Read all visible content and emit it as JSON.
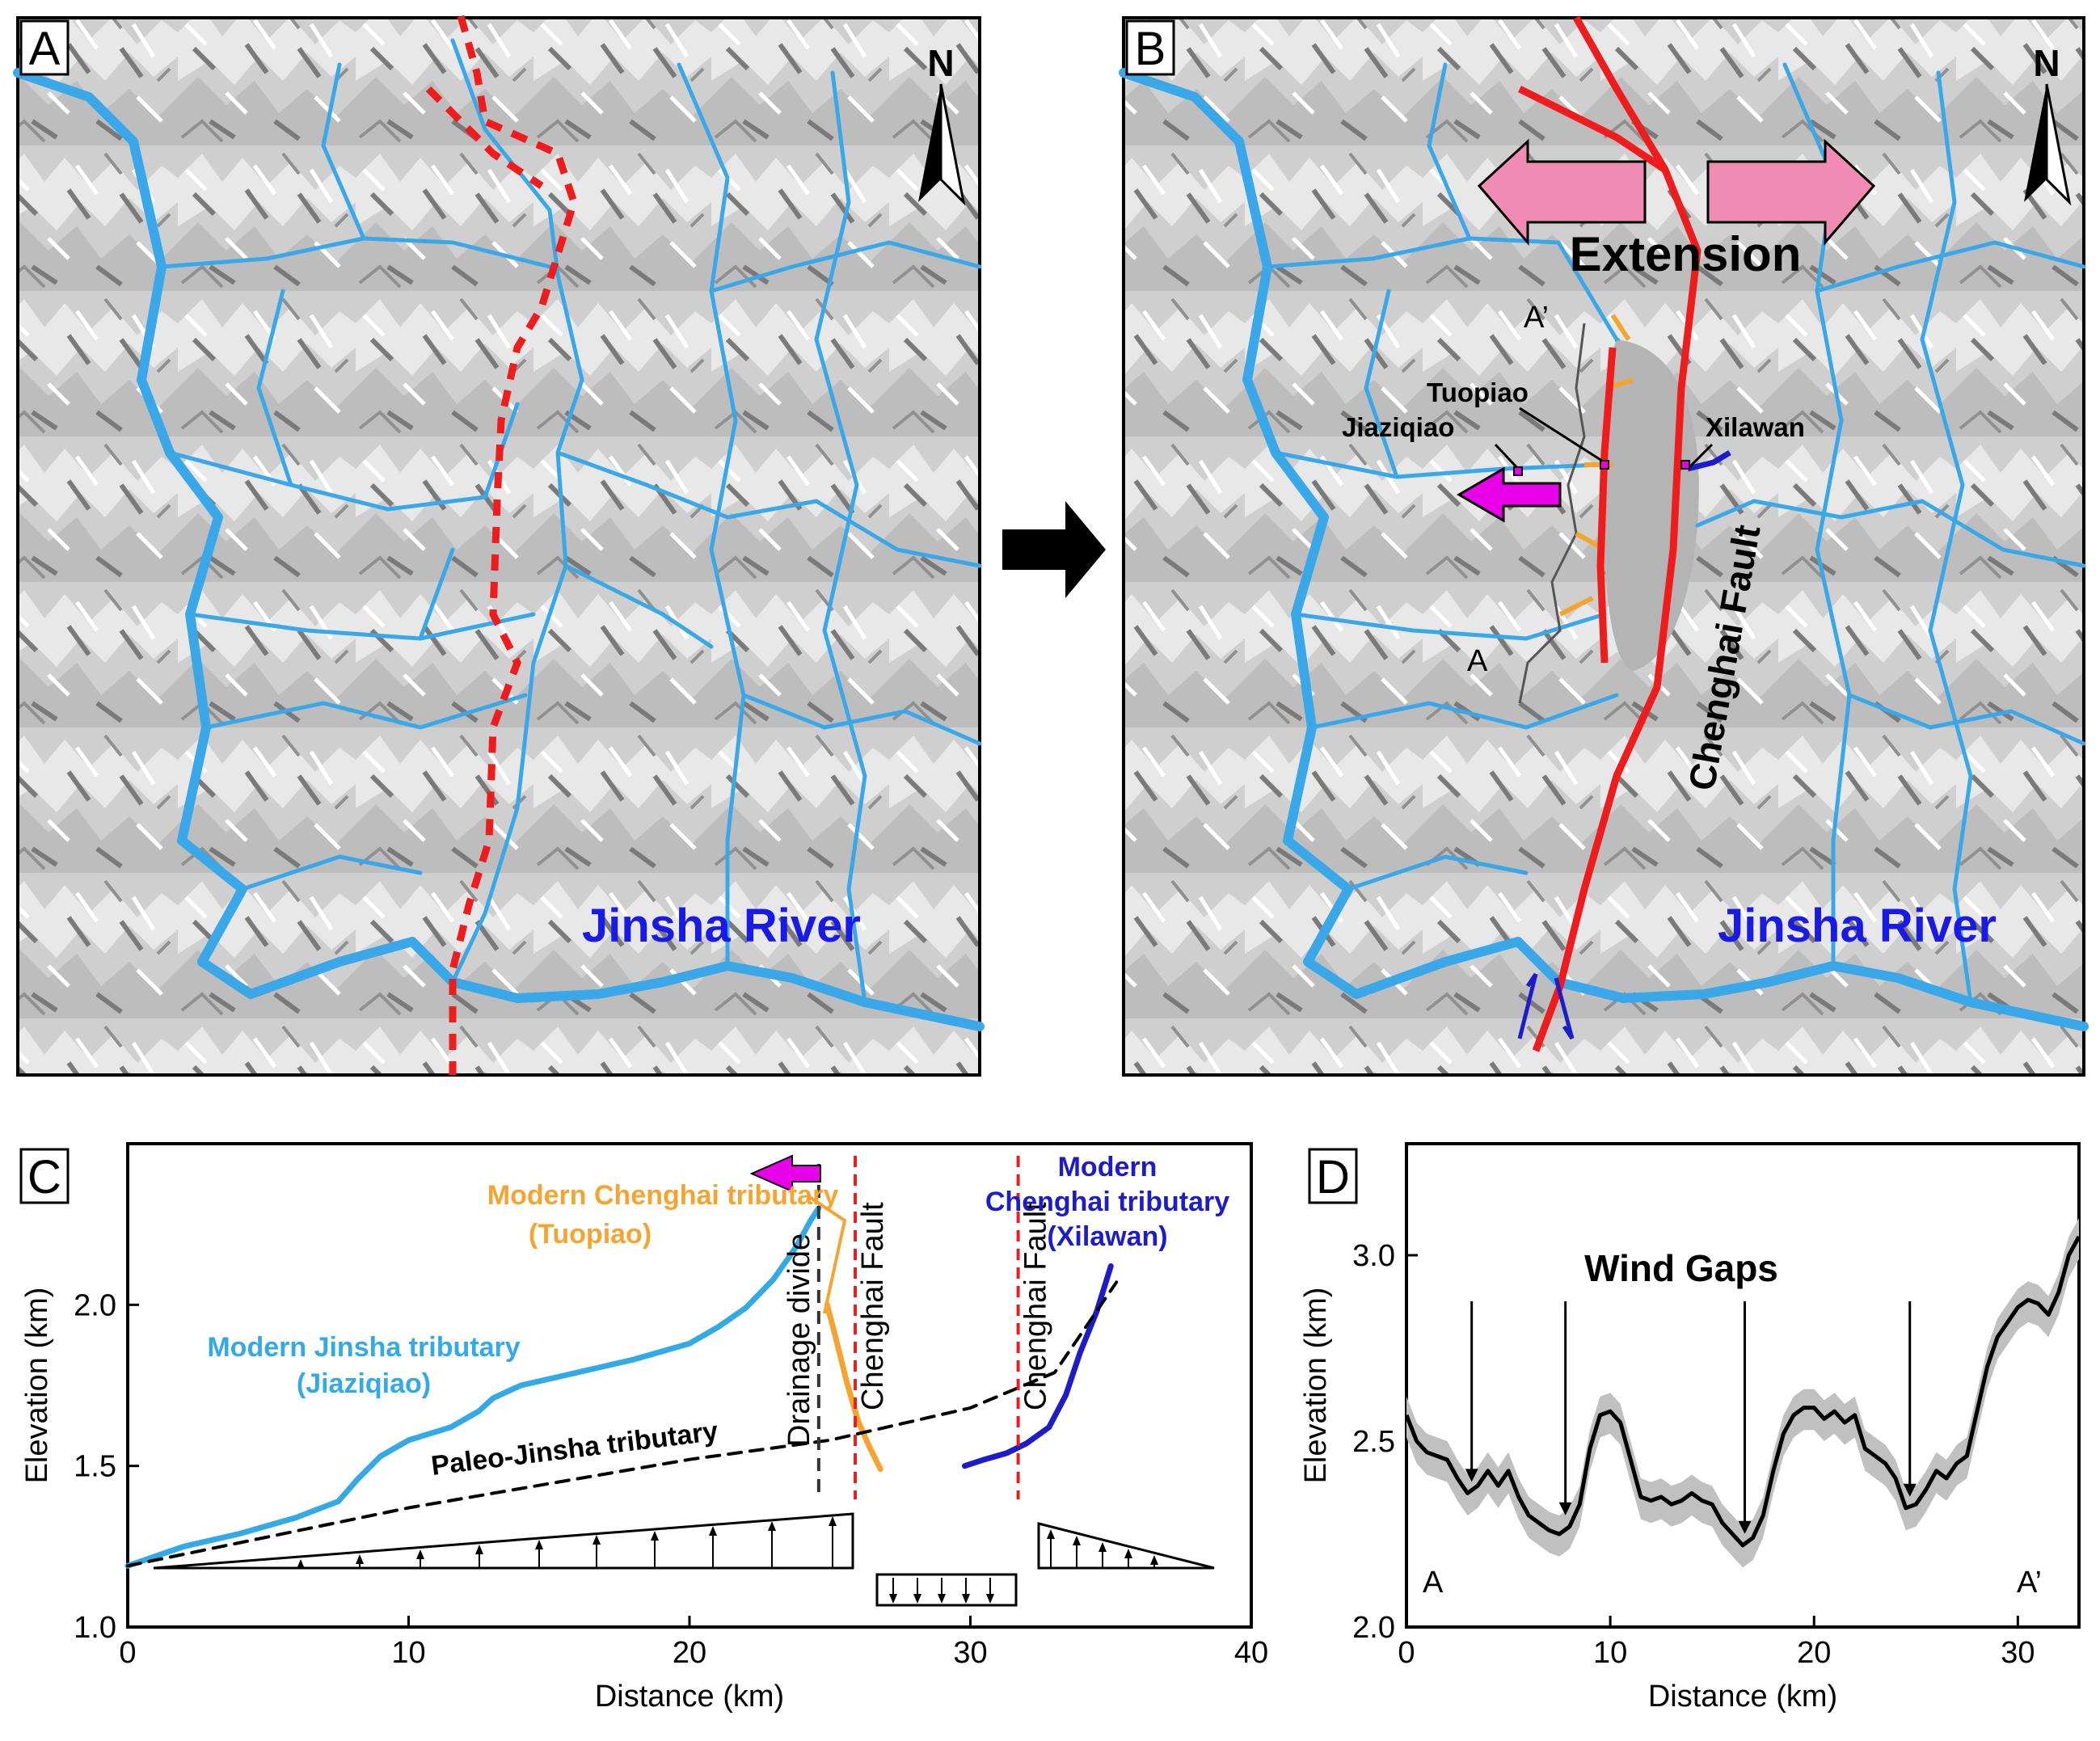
{
  "panels": {
    "a": {
      "letter": "A",
      "north": "N",
      "river_label": "Jinsha River"
    },
    "b": {
      "letter": "B",
      "north": "N",
      "river_label": "Jinsha River",
      "extension_label": "Extension",
      "fault_label": "Chenghai Fault",
      "places": {
        "tuopiao": "Tuopiao",
        "jiaziqiao": "Jiaziqiao",
        "xilawan": "Xilawan"
      },
      "profile_start": "A",
      "profile_end": "A’"
    },
    "c": {
      "letter": "C",
      "labels": {
        "jinsha_line1": "Modern Jinsha tributary",
        "jinsha_line2": "(Jiaziqiao)",
        "tuopiao_line1": "Modern Chenghai tributary",
        "tuopiao_line2": "(Tuopiao)",
        "xilawan_line1": "Modern",
        "xilawan_line2": "Chenghai tributary",
        "xilawan_line3": "(Xilawan)",
        "paleo": "Paleo-Jinsha tributary",
        "divide": "Drainage divide",
        "fault1": "Chenghai Fault",
        "fault2": "Chenghai Fault"
      }
    },
    "d": {
      "letter": "D",
      "title": "Wind Gaps",
      "start": "A",
      "end": "A’"
    }
  },
  "colors": {
    "river": "#3aa8e8",
    "fault": "#ee1c1c",
    "jinsha": "#33aae6",
    "tuopiao": "#f5a431",
    "xilawan": "#1c1cc8",
    "arrow_magenta": "#e800e8",
    "extension_arrow": "#f08cb4",
    "basin": "#b4b4b4",
    "envelope": "#c0c0c0"
  },
  "chart_data": [
    {
      "panel": "C",
      "type": "line",
      "xlabel": "Distance (km)",
      "ylabel": "Elevation (km)",
      "xlim": [
        0,
        40
      ],
      "ylim": [
        1.0,
        2.5
      ],
      "xticks": [
        0,
        10,
        20,
        30,
        40
      ],
      "yticks": [
        1.0,
        1.5,
        2.0
      ],
      "legend": "none",
      "grid": false,
      "series": [
        {
          "name": "Modern Jinsha tributary (Jiaziqiao)",
          "x": [
            0,
            2,
            4,
            6,
            7.5,
            8.2,
            9,
            10,
            11.5,
            12.5,
            13,
            14,
            16,
            18,
            20,
            21,
            22,
            23,
            23.8,
            24.3,
            24.6
          ],
          "y": [
            1.19,
            1.25,
            1.29,
            1.34,
            1.39,
            1.46,
            1.53,
            1.58,
            1.62,
            1.67,
            1.71,
            1.75,
            1.79,
            1.83,
            1.88,
            1.93,
            1.99,
            2.08,
            2.18,
            2.26,
            2.3
          ]
        },
        {
          "name": "Modern Chenghai tributary (Tuopiao)",
          "x": [
            24.9,
            25.2,
            25.6,
            26.0,
            26.4,
            26.8
          ],
          "y": [
            2.0,
            1.9,
            1.76,
            1.64,
            1.56,
            1.49
          ]
        },
        {
          "name": "Modern Chenghai tributary (Xilawan)",
          "x": [
            29.8,
            30.5,
            31.3,
            32.0,
            32.8,
            33.4,
            33.9,
            34.5,
            35.0
          ],
          "y": [
            1.5,
            1.52,
            1.54,
            1.57,
            1.62,
            1.72,
            1.85,
            1.98,
            2.12
          ]
        },
        {
          "name": "Paleo-Jinsha tributary",
          "x": [
            0,
            10,
            20,
            25,
            30,
            33,
            35.2
          ],
          "y": [
            1.19,
            1.37,
            1.52,
            1.58,
            1.68,
            1.79,
            2.07
          ]
        }
      ],
      "divide_x": 24.6,
      "fault_x": [
        25.9,
        31.7
      ]
    },
    {
      "panel": "D",
      "type": "line",
      "xlabel": "Distance (km)",
      "ylabel": "Elevation (km)",
      "xlim": [
        0,
        33
      ],
      "ylim": [
        2.0,
        3.3
      ],
      "xticks": [
        0,
        10,
        20,
        30
      ],
      "yticks": [
        2.0,
        2.5,
        3.0
      ],
      "legend": "none",
      "grid": false,
      "series": [
        {
          "name": "",
          "x": [
            0,
            0.5,
            1,
            1.5,
            2,
            2.5,
            3.0,
            3.5,
            4,
            4.5,
            5,
            5.5,
            6,
            6.5,
            7,
            7.5,
            8,
            8.5,
            9,
            9.5,
            10,
            10.5,
            11,
            11.5,
            12,
            12.5,
            13,
            13.5,
            14,
            14.5,
            15,
            15.5,
            16,
            16.5,
            17,
            17.5,
            18,
            18.5,
            19,
            19.5,
            20,
            20.5,
            21,
            21.5,
            22,
            22.5,
            23,
            23.5,
            24,
            24.5,
            25,
            25.5,
            26,
            26.5,
            27,
            27.5,
            28,
            28.5,
            29,
            29.5,
            30,
            30.5,
            31,
            31.5,
            32,
            32.5,
            33
          ],
          "y": [
            2.57,
            2.5,
            2.47,
            2.46,
            2.45,
            2.4,
            2.36,
            2.38,
            2.42,
            2.38,
            2.42,
            2.35,
            2.3,
            2.28,
            2.26,
            2.25,
            2.27,
            2.33,
            2.48,
            2.57,
            2.58,
            2.55,
            2.45,
            2.35,
            2.34,
            2.35,
            2.33,
            2.34,
            2.36,
            2.34,
            2.33,
            2.28,
            2.25,
            2.22,
            2.24,
            2.3,
            2.42,
            2.52,
            2.57,
            2.59,
            2.59,
            2.56,
            2.58,
            2.55,
            2.57,
            2.48,
            2.46,
            2.44,
            2.4,
            2.32,
            2.33,
            2.37,
            2.42,
            2.4,
            2.44,
            2.46,
            2.58,
            2.7,
            2.78,
            2.82,
            2.86,
            2.88,
            2.87,
            2.84,
            2.9,
            3.0,
            3.05
          ]
        }
      ],
      "wind_gaps_x": [
        3.2,
        7.8,
        16.6,
        24.7
      ]
    }
  ]
}
